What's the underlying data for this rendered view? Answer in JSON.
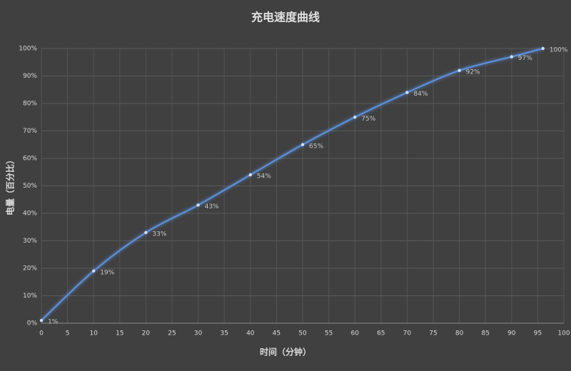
{
  "chart_data": {
    "type": "line",
    "title": "充电速度曲线",
    "x_label": "时间（分钟）",
    "y_label": "电量（百分比）",
    "x": [
      0,
      10,
      20,
      30,
      40,
      50,
      60,
      70,
      80,
      90,
      96
    ],
    "series": [
      {
        "name": "电量",
        "color": "#5b8fd9",
        "values": [
          1,
          19,
          33,
          43,
          54,
          65,
          75,
          84,
          92,
          97,
          100
        ],
        "value_labels": [
          "1%",
          "19%",
          "33%",
          "43%",
          "54%",
          "65%",
          "75%",
          "84%",
          "92%",
          "97%",
          "100%"
        ]
      }
    ],
    "xlim": [
      0,
      100
    ],
    "ylim": [
      0,
      100
    ],
    "xticks": [
      0,
      5,
      10,
      15,
      20,
      25,
      30,
      35,
      40,
      45,
      50,
      55,
      60,
      65,
      70,
      75,
      80,
      85,
      90,
      95,
      100
    ],
    "yticks": [
      {
        "value": 0,
        "label": "0%"
      },
      {
        "value": 10,
        "label": "10%"
      },
      {
        "value": 20,
        "label": "20%"
      },
      {
        "value": 30,
        "label": "30%"
      },
      {
        "value": 40,
        "label": "40%"
      },
      {
        "value": 50,
        "label": "50%"
      },
      {
        "value": 60,
        "label": "60%"
      },
      {
        "value": 70,
        "label": "70%"
      },
      {
        "value": 80,
        "label": "80%"
      },
      {
        "value": 90,
        "label": "90%"
      },
      {
        "value": 100,
        "label": "100%"
      }
    ],
    "grid": true
  }
}
